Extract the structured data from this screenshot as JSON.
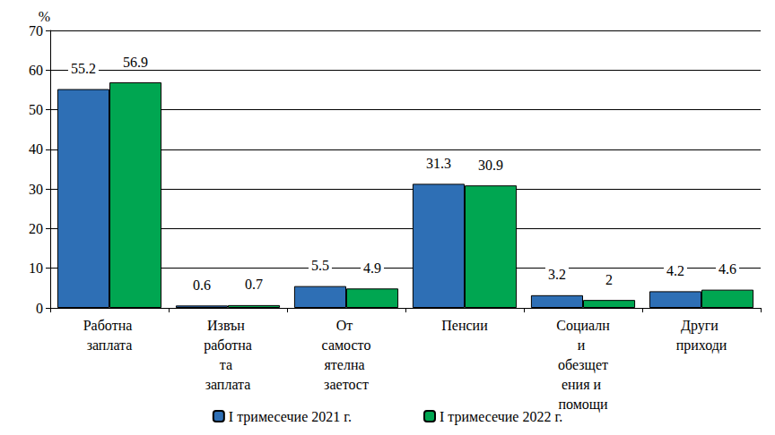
{
  "chart_data": {
    "type": "bar",
    "ylabel": "%",
    "categories": [
      "Работна заплата",
      "Извън работната заплата",
      "От самостоятелна заетост",
      "Пенсии",
      "Социални обезщетения и помощи",
      "Други приходи"
    ],
    "series": [
      {
        "name": "I тримесечие 2021 г.",
        "color": "#2e6fb5",
        "values": [
          55.2,
          0.6,
          5.5,
          31.3,
          3.2,
          4.2
        ]
      },
      {
        "name": "I тримесечие 2022 г.",
        "color": "#00a651",
        "values": [
          56.9,
          0.7,
          4.9,
          30.9,
          2.0,
          4.6
        ]
      }
    ],
    "ylim": [
      0,
      70
    ],
    "yticks": [
      0,
      10,
      20,
      30,
      40,
      50,
      60,
      70
    ],
    "grid": true,
    "legend": "bottom",
    "data_labels": true
  }
}
